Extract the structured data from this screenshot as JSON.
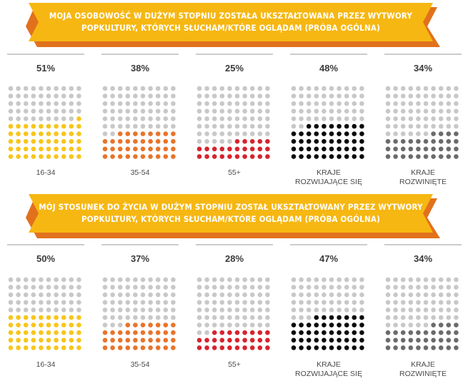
{
  "colors": {
    "banner_fill": "#F6B712",
    "banner_shadow": "#E2711D",
    "empty_dot": "#C8C8C8",
    "rule": "#9A9A9A",
    "groups": [
      "#F8C51B",
      "#E8742A",
      "#D6242F",
      "#0A0A0A",
      "#6B6B6B"
    ]
  },
  "chart_data": [
    {
      "type": "dot-matrix",
      "title_lines": [
        "MOJA OSOBOWOŚĆ W DUŻYM STOPNIU ZOSTAŁA UKSZTAŁTOWANA PRZEZ WYTWORY",
        "POPKULTURY, KTÓRYCH SŁUCHAM/KTÓRE OGLĄDAM (PRÓBA OGÓLNA)"
      ],
      "unit": "%",
      "categories": [
        [
          "16-34"
        ],
        [
          "35-54"
        ],
        [
          "55+"
        ],
        [
          "KRAJE",
          "ROZWIJAJĄCE SIĘ"
        ],
        [
          "KRAJE",
          "ROZWINIĘTE"
        ]
      ],
      "values": [
        51,
        38,
        25,
        48,
        34
      ],
      "labels": [
        "51%",
        "38%",
        "25%",
        "48%",
        "34%"
      ],
      "dots_per_grid": 100
    },
    {
      "type": "dot-matrix",
      "title_lines": [
        "MÓJ STOSUNEK DO ŻYCIA W DUŻYM STOPNIU ZOSTAŁ UKSZTAŁTOWANY PRZEZ WYTWORY",
        "POPKULTURY, KTÓRYCH SŁUCHAM/KTÓRE OGLĄDAM (PRÓBA OGÓLNA)"
      ],
      "unit": "%",
      "categories": [
        [
          "16-34"
        ],
        [
          "35-54"
        ],
        [
          "55+"
        ],
        [
          "KRAJE",
          "ROZWIJAJĄCE SIĘ"
        ],
        [
          "KRAJE",
          "ROZWINIĘTE"
        ]
      ],
      "values": [
        50,
        37,
        28,
        47,
        34
      ],
      "labels": [
        "50%",
        "37%",
        "28%",
        "47%",
        "34%"
      ],
      "dots_per_grid": 100
    }
  ]
}
